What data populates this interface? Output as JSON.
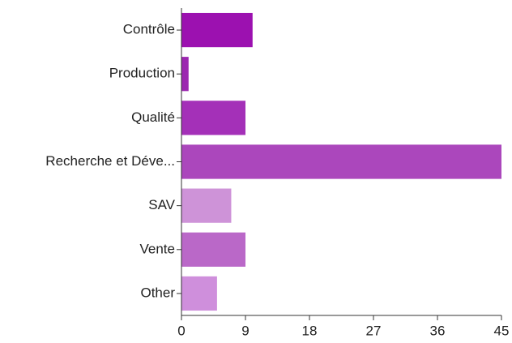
{
  "chart_data": {
    "type": "bar",
    "orientation": "horizontal",
    "categories": [
      "Contrôle",
      "Production",
      "Qualité",
      "Recherche et Déve...",
      "SAV",
      "Vente",
      "Other"
    ],
    "values": [
      10,
      1,
      9,
      45,
      7,
      9,
      5
    ],
    "colors": [
      "#9c11b0",
      "#9c27b0",
      "#a430b8",
      "#ab47bc",
      "#ce93d8",
      "#ba68c8",
      "#cf8fdc"
    ],
    "xlim": [
      0,
      45
    ],
    "xticks": [
      0,
      9,
      18,
      27,
      36,
      45
    ]
  }
}
